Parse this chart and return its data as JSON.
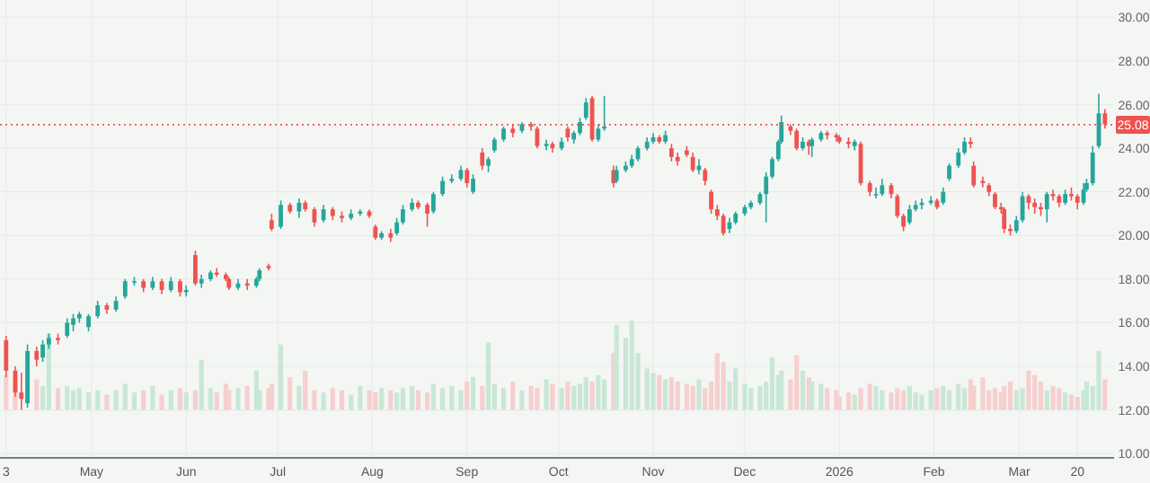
{
  "chart_data": {
    "type": "candlestick",
    "x": [
      "2025-04-03",
      "2025-04-06",
      "2025-04-08",
      "2025-04-10",
      "2025-04-13",
      "2025-04-15",
      "2025-04-17",
      "2025-04-20",
      "2025-04-23",
      "2025-04-25",
      "2025-04-27",
      "2025-04-30",
      "2025-05-03",
      "2025-05-06",
      "2025-05-09",
      "2025-05-12",
      "2025-05-15",
      "2025-05-18",
      "2025-05-21",
      "2025-05-24",
      "2025-05-27",
      "2025-05-30",
      "2025-06-01",
      "2025-06-04",
      "2025-06-06",
      "2025-06-09",
      "2025-06-11",
      "2025-06-14",
      "2025-06-15",
      "2025-06-18",
      "2025-06-21",
      "2025-06-24",
      "2025-06-25",
      "2025-06-28",
      "2025-06-29",
      "2025-07-02",
      "2025-07-05",
      "2025-07-08",
      "2025-07-10",
      "2025-07-13",
      "2025-07-16",
      "2025-07-19",
      "2025-07-22",
      "2025-07-25",
      "2025-07-28",
      "2025-07-31",
      "2025-08-02",
      "2025-08-04",
      "2025-08-07",
      "2025-08-09",
      "2025-08-11",
      "2025-08-14",
      "2025-08-16",
      "2025-08-19",
      "2025-08-21",
      "2025-08-24",
      "2025-08-27",
      "2025-08-30",
      "2025-09-01",
      "2025-09-03",
      "2025-09-06",
      "2025-09-08",
      "2025-09-10",
      "2025-09-13",
      "2025-09-16",
      "2025-09-19",
      "2025-09-22",
      "2025-09-24",
      "2025-09-27",
      "2025-09-29",
      "2025-10-02",
      "2025-10-04",
      "2025-10-06",
      "2025-10-08",
      "2025-10-10",
      "2025-10-12",
      "2025-10-14",
      "2025-10-16",
      "2025-10-19",
      "2025-10-20",
      "2025-10-23",
      "2025-10-25",
      "2025-10-27",
      "2025-10-30",
      "2025-11-01",
      "2025-11-03",
      "2025-11-05",
      "2025-11-07",
      "2025-11-09",
      "2025-11-12",
      "2025-11-14",
      "2025-11-16",
      "2025-11-18",
      "2025-11-20",
      "2025-11-22",
      "2025-11-24",
      "2025-11-26",
      "2025-11-28",
      "2025-12-01",
      "2025-12-03",
      "2025-12-06",
      "2025-12-08",
      "2025-12-10",
      "2025-12-12",
      "2025-12-13",
      "2025-12-16",
      "2025-12-18",
      "2025-12-20",
      "2025-12-22",
      "2025-12-23",
      "2025-12-26",
      "2025-12-28",
      "2025-12-31",
      "2026-01-01",
      "2026-01-04",
      "2026-01-06",
      "2026-01-08",
      "2026-01-11",
      "2026-01-13",
      "2026-01-15",
      "2026-01-18",
      "2026-01-20",
      "2026-01-22",
      "2026-01-24",
      "2026-01-26",
      "2026-01-28",
      "2026-01-31",
      "2026-02-02",
      "2026-02-04",
      "2026-02-06",
      "2026-02-09",
      "2026-02-11",
      "2026-02-13",
      "2026-02-14",
      "2026-02-17",
      "2026-02-19",
      "2026-02-21",
      "2026-02-23",
      "2026-02-24",
      "2026-02-26",
      "2026-02-28",
      "2026-03-02",
      "2026-03-04",
      "2026-03-06",
      "2026-03-08",
      "2026-03-10",
      "2026-03-12",
      "2026-03-14",
      "2026-03-16",
      "2026-03-18",
      "2026-03-20",
      "2026-03-22",
      "2026-03-23",
      "2026-03-25",
      "2026-03-27",
      "2026-03-29"
    ],
    "ohlc": [
      [
        15.2,
        15.4,
        13.5,
        13.8
      ],
      [
        13.8,
        14.0,
        12.6,
        12.8
      ],
      [
        12.8,
        13.7,
        12.0,
        12.5
      ],
      [
        12.3,
        15.0,
        12.1,
        14.7
      ],
      [
        14.7,
        14.9,
        14.0,
        14.3
      ],
      [
        14.4,
        15.2,
        14.2,
        15.0
      ],
      [
        15.0,
        15.5,
        14.8,
        15.3
      ],
      [
        15.3,
        15.5,
        15.0,
        15.2
      ],
      [
        15.4,
        16.2,
        15.3,
        16.0
      ],
      [
        15.9,
        16.4,
        15.6,
        16.2
      ],
      [
        16.2,
        16.5,
        16.0,
        16.4
      ],
      [
        15.8,
        16.4,
        15.6,
        16.3
      ],
      [
        16.3,
        17.0,
        16.2,
        16.8
      ],
      [
        16.8,
        16.9,
        16.4,
        16.6
      ],
      [
        16.6,
        17.2,
        16.5,
        17.0
      ],
      [
        17.2,
        18.0,
        17.1,
        17.9
      ],
      [
        17.9,
        18.1,
        17.7,
        17.9
      ],
      [
        17.9,
        18.0,
        17.4,
        17.6
      ],
      [
        17.6,
        18.1,
        17.5,
        17.9
      ],
      [
        17.9,
        18.0,
        17.3,
        17.5
      ],
      [
        17.5,
        18.1,
        17.4,
        17.9
      ],
      [
        17.9,
        18.0,
        17.2,
        17.4
      ],
      [
        17.4,
        17.7,
        17.2,
        17.5
      ],
      [
        19.1,
        19.3,
        17.7,
        17.8
      ],
      [
        17.8,
        18.2,
        17.6,
        18.0
      ],
      [
        18.0,
        18.4,
        17.9,
        18.3
      ],
      [
        18.3,
        18.5,
        18.1,
        18.2
      ],
      [
        18.2,
        18.3,
        17.9,
        18.0
      ],
      [
        18.0,
        18.1,
        17.5,
        17.6
      ],
      [
        17.6,
        18.0,
        17.5,
        17.8
      ],
      [
        17.8,
        18.0,
        17.5,
        17.7
      ],
      [
        17.7,
        18.1,
        17.6,
        18.0
      ],
      [
        18.0,
        18.5,
        17.9,
        18.4
      ],
      [
        18.6,
        18.7,
        18.4,
        18.5
      ],
      [
        20.7,
        21.0,
        20.2,
        20.3
      ],
      [
        20.4,
        21.6,
        20.3,
        21.4
      ],
      [
        21.4,
        21.5,
        21.0,
        21.1
      ],
      [
        21.1,
        21.7,
        20.8,
        21.5
      ],
      [
        21.5,
        21.6,
        21.1,
        21.2
      ],
      [
        21.2,
        21.3,
        20.4,
        20.6
      ],
      [
        20.7,
        21.4,
        20.6,
        21.2
      ],
      [
        21.2,
        21.3,
        20.7,
        20.9
      ],
      [
        20.9,
        21.1,
        20.6,
        20.8
      ],
      [
        20.8,
        21.2,
        20.7,
        21.0
      ],
      [
        21.0,
        21.2,
        20.9,
        21.1
      ],
      [
        21.1,
        21.2,
        20.8,
        20.9
      ],
      [
        20.4,
        20.5,
        19.8,
        19.9
      ],
      [
        19.9,
        20.2,
        19.8,
        20.1
      ],
      [
        20.1,
        20.3,
        19.7,
        19.9
      ],
      [
        20.1,
        20.8,
        20.0,
        20.6
      ],
      [
        20.6,
        21.4,
        20.5,
        21.2
      ],
      [
        21.2,
        21.7,
        21.1,
        21.5
      ],
      [
        21.5,
        21.6,
        21.2,
        21.3
      ],
      [
        21.4,
        21.5,
        20.4,
        21.0
      ],
      [
        21.1,
        22.0,
        21.0,
        21.9
      ],
      [
        21.9,
        22.7,
        21.8,
        22.5
      ],
      [
        22.5,
        22.8,
        22.4,
        22.6
      ],
      [
        22.6,
        23.2,
        22.5,
        23.0
      ],
      [
        23.0,
        23.1,
        22.2,
        22.4
      ],
      [
        22.0,
        22.8,
        21.9,
        22.6
      ],
      [
        23.8,
        24.0,
        23.0,
        23.2
      ],
      [
        23.2,
        23.6,
        22.9,
        23.5
      ],
      [
        23.9,
        24.5,
        23.8,
        24.4
      ],
      [
        24.4,
        25.0,
        24.3,
        24.9
      ],
      [
        24.9,
        25.1,
        24.5,
        24.7
      ],
      [
        24.8,
        25.2,
        24.7,
        25.1
      ],
      [
        25.1,
        25.2,
        24.8,
        25.0
      ],
      [
        24.9,
        25.0,
        24.0,
        24.1
      ],
      [
        24.1,
        24.4,
        23.9,
        24.2
      ],
      [
        24.2,
        24.3,
        23.8,
        24.0
      ],
      [
        24.0,
        24.5,
        23.9,
        24.3
      ],
      [
        24.9,
        25.0,
        24.3,
        24.5
      ],
      [
        24.4,
        24.8,
        24.2,
        24.7
      ],
      [
        24.7,
        25.4,
        24.6,
        25.2
      ],
      [
        25.4,
        26.3,
        25.3,
        26.1
      ],
      [
        26.3,
        26.4,
        24.3,
        24.4
      ],
      [
        24.4,
        25.1,
        24.3,
        24.9
      ],
      [
        24.9,
        26.4,
        24.8,
        25.0
      ],
      [
        23.0,
        23.2,
        22.2,
        22.4
      ],
      [
        22.5,
        23.2,
        22.4,
        23.0
      ],
      [
        23.0,
        23.4,
        22.9,
        23.2
      ],
      [
        23.2,
        23.7,
        23.1,
        23.5
      ],
      [
        23.5,
        24.1,
        23.4,
        24.0
      ],
      [
        24.0,
        24.5,
        23.9,
        24.3
      ],
      [
        24.3,
        24.7,
        24.2,
        24.5
      ],
      [
        24.5,
        24.6,
        24.2,
        24.3
      ],
      [
        24.3,
        24.8,
        24.2,
        24.6
      ],
      [
        24.0,
        24.2,
        23.4,
        23.6
      ],
      [
        23.6,
        23.8,
        23.2,
        23.4
      ],
      [
        23.9,
        24.1,
        23.6,
        23.7
      ],
      [
        23.6,
        23.8,
        22.9,
        23.0
      ],
      [
        23.0,
        23.5,
        22.8,
        23.2
      ],
      [
        23.0,
        23.1,
        22.3,
        22.5
      ],
      [
        22.0,
        22.1,
        21.0,
        21.2
      ],
      [
        21.2,
        21.4,
        20.7,
        20.9
      ],
      [
        20.9,
        21.0,
        20.0,
        20.1
      ],
      [
        20.3,
        20.8,
        20.1,
        20.6
      ],
      [
        20.6,
        21.1,
        20.5,
        21.0
      ],
      [
        21.0,
        21.4,
        20.9,
        21.3
      ],
      [
        21.3,
        21.6,
        21.2,
        21.5
      ],
      [
        21.5,
        22.0,
        21.4,
        21.9
      ],
      [
        21.9,
        22.9,
        20.6,
        22.7
      ],
      [
        22.7,
        23.6,
        22.6,
        23.5
      ],
      [
        23.5,
        24.4,
        23.4,
        24.3
      ],
      [
        24.3,
        25.5,
        24.2,
        25.2
      ],
      [
        25.0,
        25.1,
        24.6,
        24.8
      ],
      [
        24.8,
        24.9,
        23.9,
        24.0
      ],
      [
        24.0,
        24.5,
        23.9,
        24.3
      ],
      [
        24.3,
        24.4,
        23.7,
        24.1
      ],
      [
        24.1,
        24.5,
        23.6,
        24.4
      ],
      [
        24.4,
        24.8,
        24.3,
        24.7
      ],
      [
        24.7,
        24.8,
        24.4,
        24.6
      ],
      [
        24.6,
        24.7,
        24.3,
        24.5
      ],
      [
        24.5,
        24.6,
        24.2,
        24.3
      ],
      [
        24.3,
        24.5,
        24.0,
        24.2
      ],
      [
        24.1,
        24.4,
        23.9,
        24.3
      ],
      [
        24.2,
        24.3,
        22.3,
        22.4
      ],
      [
        22.4,
        22.5,
        21.8,
        22.0
      ],
      [
        21.9,
        22.2,
        21.7,
        21.9
      ],
      [
        21.9,
        22.6,
        21.8,
        22.3
      ],
      [
        22.3,
        22.4,
        21.7,
        21.9
      ],
      [
        21.8,
        21.9,
        20.8,
        20.9
      ],
      [
        20.9,
        21.0,
        20.2,
        20.4
      ],
      [
        20.6,
        21.4,
        20.5,
        21.2
      ],
      [
        21.2,
        21.6,
        21.1,
        21.4
      ],
      [
        21.4,
        21.7,
        21.2,
        21.5
      ],
      [
        21.5,
        21.8,
        21.4,
        21.6
      ],
      [
        21.6,
        21.7,
        21.2,
        21.3
      ],
      [
        21.5,
        22.2,
        21.4,
        22.0
      ],
      [
        22.6,
        23.3,
        22.5,
        23.2
      ],
      [
        23.2,
        24.0,
        23.1,
        23.8
      ],
      [
        23.8,
        24.5,
        23.7,
        24.3
      ],
      [
        24.3,
        24.5,
        24.0,
        24.2
      ],
      [
        23.2,
        23.4,
        22.2,
        22.3
      ],
      [
        22.5,
        22.7,
        22.2,
        22.4
      ],
      [
        22.3,
        22.4,
        21.8,
        22.0
      ],
      [
        21.9,
        22.0,
        21.2,
        21.3
      ],
      [
        21.3,
        21.5,
        21.0,
        21.2
      ],
      [
        21.2,
        21.3,
        20.1,
        20.3
      ],
      [
        20.3,
        20.5,
        20.0,
        20.2
      ],
      [
        20.2,
        20.9,
        20.1,
        20.7
      ],
      [
        20.7,
        22.0,
        20.6,
        21.8
      ],
      [
        21.8,
        21.9,
        21.2,
        21.5
      ],
      [
        21.5,
        21.7,
        21.0,
        21.3
      ],
      [
        21.3,
        21.5,
        20.9,
        21.2
      ],
      [
        21.2,
        22.0,
        20.6,
        21.9
      ],
      [
        21.9,
        22.1,
        21.6,
        21.8
      ],
      [
        21.8,
        21.9,
        21.3,
        21.5
      ],
      [
        21.5,
        22.1,
        21.4,
        21.9
      ],
      [
        21.9,
        22.2,
        21.6,
        21.8
      ],
      [
        21.8,
        21.9,
        21.2,
        21.5
      ],
      [
        21.5,
        22.4,
        21.4,
        22.1
      ],
      [
        22.1,
        22.6,
        22.0,
        22.4
      ],
      [
        22.4,
        24.1,
        22.3,
        23.8
      ],
      [
        24.1,
        26.5,
        24.0,
        25.6
      ],
      [
        25.6,
        25.8,
        24.9,
        25.1
      ]
    ],
    "colors": [
      "#ef5350",
      "#ef5350",
      "#ef5350",
      "#26a69a",
      "#ef5350",
      "#26a69a",
      "#26a69a",
      "#ef5350",
      "#26a69a",
      "#26a69a",
      "#26a69a",
      "#26a69a",
      "#26a69a",
      "#ef5350",
      "#26a69a",
      "#26a69a",
      "#26a69a",
      "#ef5350",
      "#26a69a",
      "#ef5350",
      "#26a69a",
      "#ef5350",
      "#26a69a",
      "#ef5350",
      "#26a69a",
      "#26a69a",
      "#ef5350",
      "#ef5350",
      "#ef5350",
      "#26a69a",
      "#ef5350",
      "#26a69a",
      "#26a69a",
      "#ef5350",
      "#ef5350",
      "#26a69a",
      "#ef5350",
      "#26a69a",
      "#ef5350",
      "#ef5350",
      "#26a69a",
      "#ef5350",
      "#ef5350",
      "#26a69a",
      "#26a69a",
      "#ef5350",
      "#ef5350",
      "#26a69a",
      "#ef5350",
      "#26a69a",
      "#26a69a",
      "#26a69a",
      "#ef5350",
      "#ef5350",
      "#26a69a",
      "#26a69a",
      "#26a69a",
      "#26a69a",
      "#ef5350",
      "#26a69a",
      "#ef5350",
      "#26a69a",
      "#26a69a",
      "#26a69a",
      "#ef5350",
      "#26a69a",
      "#ef5350",
      "#ef5350",
      "#26a69a",
      "#ef5350",
      "#26a69a",
      "#ef5350",
      "#26a69a",
      "#26a69a",
      "#26a69a",
      "#ef5350",
      "#26a69a",
      "#26a69a",
      "#ef5350",
      "#26a69a",
      "#26a69a",
      "#26a69a",
      "#26a69a",
      "#26a69a",
      "#26a69a",
      "#ef5350",
      "#26a69a",
      "#ef5350",
      "#ef5350",
      "#ef5350",
      "#ef5350",
      "#26a69a",
      "#ef5350",
      "#ef5350",
      "#ef5350",
      "#ef5350",
      "#26a69a",
      "#26a69a",
      "#26a69a",
      "#26a69a",
      "#26a69a",
      "#26a69a",
      "#26a69a",
      "#26a69a",
      "#26a69a",
      "#ef5350",
      "#ef5350",
      "#26a69a",
      "#ef5350",
      "#26a69a",
      "#26a69a",
      "#ef5350",
      "#ef5350",
      "#ef5350",
      "#ef5350",
      "#26a69a",
      "#ef5350",
      "#ef5350",
      "#26a69a",
      "#26a69a",
      "#ef5350",
      "#ef5350",
      "#ef5350",
      "#26a69a",
      "#26a69a",
      "#26a69a",
      "#26a69a",
      "#ef5350",
      "#26a69a",
      "#26a69a",
      "#26a69a",
      "#26a69a",
      "#ef5350",
      "#ef5350",
      "#ef5350",
      "#ef5350",
      "#ef5350",
      "#ef5350",
      "#ef5350",
      "#ef5350",
      "#26a69a",
      "#26a69a",
      "#ef5350",
      "#ef5350",
      "#ef5350",
      "#26a69a",
      "#ef5350",
      "#ef5350",
      "#26a69a",
      "#ef5350",
      "#ef5350",
      "#26a69a",
      "#26a69a",
      "#26a69a",
      "#26a69a",
      "#ef5350"
    ],
    "series": [
      {
        "type": "bar",
        "colors": [
          "#f6cfcf",
          "#f6cfcf",
          null,
          null,
          "#f6cfcf",
          "#c9e7d6",
          "#c9e7d6",
          "#f6cfcf",
          "#c9e7d6",
          "#c9e7d6",
          "#c9e7d6",
          "#c9e7d6",
          "#c9e7d6",
          "#f6cfcf",
          "#c9e7d6",
          "#c9e7d6",
          "#c9e7d6",
          "#f6cfcf",
          "#c9e7d6",
          "#f6cfcf",
          "#c9e7d6",
          "#f6cfcf",
          "#c9e7d6",
          "#f6cfcf",
          "#c9e7d6",
          "#c9e7d6",
          "#f6cfcf",
          "#f6cfcf",
          "#f6cfcf",
          "#c9e7d6",
          "#f6cfcf",
          "#c9e7d6",
          "#c9e7d6",
          "#f6cfcf",
          "#f6cfcf",
          "#c9e7d6",
          "#f6cfcf",
          "#c9e7d6",
          "#f6cfcf",
          "#f6cfcf",
          "#c9e7d6",
          "#f6cfcf",
          "#f6cfcf",
          "#c9e7d6",
          "#c9e7d6",
          "#f6cfcf",
          "#f6cfcf",
          "#c9e7d6",
          "#f6cfcf",
          "#c9e7d6",
          "#c9e7d6",
          "#c9e7d6",
          "#f6cfcf",
          "#f6cfcf",
          "#c9e7d6",
          "#c9e7d6",
          "#c9e7d6",
          "#c9e7d6",
          "#f6cfcf",
          "#c9e7d6",
          "#f6cfcf",
          "#c9e7d6",
          "#c9e7d6",
          "#c9e7d6",
          "#f6cfcf",
          "#c9e7d6",
          "#f6cfcf",
          "#f6cfcf",
          "#c9e7d6",
          "#f6cfcf",
          "#c9e7d6",
          "#f6cfcf",
          "#c9e7d6",
          "#c9e7d6",
          "#c9e7d6",
          "#f6cfcf",
          "#c9e7d6",
          "#c9e7d6",
          "#f6cfcf",
          "#c9e7d6",
          "#c9e7d6",
          "#c9e7d6",
          "#c9e7d6",
          "#c9e7d6",
          "#c9e7d6",
          "#f6cfcf",
          "#c9e7d6",
          "#f6cfcf",
          "#f6cfcf",
          "#f6cfcf",
          "#f6cfcf",
          "#c9e7d6",
          "#f6cfcf",
          "#f6cfcf",
          "#f6cfcf",
          "#f6cfcf",
          "#c9e7d6",
          "#c9e7d6",
          "#c9e7d6",
          "#c9e7d6",
          "#c9e7d6",
          "#c9e7d6",
          "#c9e7d6",
          "#c9e7d6",
          "#c9e7d6",
          "#f6cfcf",
          "#f6cfcf",
          "#c9e7d6",
          "#f6cfcf",
          "#c9e7d6",
          "#c9e7d6",
          "#f6cfcf",
          "#f6cfcf",
          "#f6cfcf",
          "#f6cfcf",
          "#c9e7d6",
          "#f6cfcf",
          "#f6cfcf",
          "#c9e7d6",
          "#c9e7d6",
          "#f6cfcf",
          "#f6cfcf",
          "#f6cfcf",
          "#c9e7d6",
          "#c9e7d6",
          "#c9e7d6",
          "#c9e7d6",
          "#f6cfcf",
          "#c9e7d6",
          "#c9e7d6",
          "#c9e7d6",
          "#c9e7d6",
          "#f6cfcf",
          "#f6cfcf",
          "#f6cfcf",
          "#f6cfcf",
          "#f6cfcf",
          "#f6cfcf",
          "#f6cfcf",
          "#f6cfcf",
          "#c9e7d6",
          "#c9e7d6",
          "#f6cfcf",
          "#f6cfcf",
          "#f6cfcf",
          "#c9e7d6",
          "#f6cfcf",
          "#f6cfcf",
          "#c9e7d6",
          "#f6cfcf",
          "#f6cfcf",
          "#c9e7d6",
          "#c9e7d6",
          "#c9e7d6",
          "#c9e7d6",
          "#f6cfcf"
        ],
        "base": [
          12,
          12,
          null,
          null,
          12,
          12,
          12,
          12,
          12,
          12,
          12,
          12,
          12,
          12,
          12,
          12,
          12,
          12,
          12,
          12,
          12,
          12,
          12,
          12,
          12,
          12,
          12,
          12,
          12,
          12,
          12,
          12,
          12,
          12,
          12,
          12,
          12,
          12,
          12,
          12,
          12,
          12,
          12,
          12,
          12,
          12,
          12,
          12,
          12,
          12,
          12,
          12,
          12,
          12,
          12,
          12,
          12,
          12,
          12,
          12,
          12,
          12,
          12,
          12,
          12,
          12,
          12,
          12,
          12,
          12,
          12,
          12,
          12,
          12,
          12,
          12,
          12,
          12,
          12,
          12,
          12,
          12,
          12,
          12,
          12,
          12,
          12,
          12,
          12,
          12,
          12,
          12,
          12,
          12,
          12,
          12,
          12,
          12,
          12,
          12,
          12,
          12,
          12,
          12,
          12,
          12,
          12,
          12,
          12,
          12,
          12,
          12,
          12,
          12,
          12,
          12,
          12,
          12,
          12,
          12,
          12,
          12,
          12,
          12,
          12,
          12,
          12,
          12,
          12,
          12,
          12,
          12,
          12,
          12,
          12,
          12,
          12,
          12,
          12,
          12,
          12,
          12,
          12,
          12,
          12,
          12,
          12,
          12,
          12,
          12,
          12,
          12,
          12,
          12,
          12,
          12
        ],
        "values": [
          1.6,
          1.3,
          null,
          null,
          1.4,
          1.1,
          3.5,
          1.0,
          1.1,
          0.9,
          1.0,
          0.8,
          0.9,
          0.7,
          0.9,
          1.2,
          0.8,
          0.9,
          1.1,
          0.7,
          0.9,
          1.0,
          0.8,
          0.9,
          2.3,
          1.0,
          0.8,
          1.2,
          0.9,
          1.0,
          1.1,
          1.8,
          0.9,
          1.0,
          1.2,
          3.0,
          1.5,
          1.1,
          1.8,
          0.9,
          0.8,
          1.0,
          0.9,
          0.7,
          1.1,
          0.9,
          0.8,
          1.0,
          0.9,
          0.8,
          1.0,
          1.1,
          0.9,
          0.8,
          1.2,
          1.0,
          1.1,
          0.9,
          1.3,
          1.5,
          1.1,
          3.1,
          1.2,
          1.0,
          1.3,
          0.9,
          1.1,
          1.0,
          1.4,
          1.2,
          1.0,
          1.3,
          1.1,
          1.2,
          1.5,
          1.3,
          1.6,
          1.4,
          2.6,
          3.9,
          3.3,
          4.1,
          2.6,
          1.9,
          1.7,
          1.6,
          1.4,
          1.5,
          1.3,
          1.2,
          1.1,
          1.4,
          1.0,
          1.3,
          2.6,
          2.2,
          1.3,
          1.9,
          1.2,
          1.0,
          1.1,
          1.3,
          2.4,
          1.6,
          1.8,
          1.4,
          2.5,
          1.8,
          1.5,
          1.3,
          1.2,
          1.0,
          0.9,
          0.6,
          0.8,
          0.7,
          1.0,
          1.2,
          1.1,
          0.9,
          0.8,
          1.0,
          0.9,
          1.1,
          0.8,
          0.7,
          0.9,
          1.0,
          1.1,
          0.9,
          1.2,
          1.0,
          1.4,
          1.1,
          1.5,
          0.9,
          1.0,
          0.8,
          1.1,
          1.3,
          0.9,
          1.0,
          1.8,
          1.6,
          1.3,
          0.9,
          1.1,
          1.0,
          0.8,
          0.7,
          0.6,
          0.9,
          1.3,
          1.1,
          2.7,
          1.4
        ]
      }
    ],
    "xlim": [
      "2025-04-01",
      "2026-04-01"
    ],
    "xticks": [
      {
        "value": "2025-04-03",
        "label": "3"
      },
      {
        "value": "2025-05-01",
        "label": "May"
      },
      {
        "value": "2025-06-01",
        "label": "Jun"
      },
      {
        "value": "2025-07-01",
        "label": "Jul"
      },
      {
        "value": "2025-08-01",
        "label": "Aug"
      },
      {
        "value": "2025-09-01",
        "label": "Sep"
      },
      {
        "value": "2025-10-01",
        "label": "Oct"
      },
      {
        "value": "2025-11-01",
        "label": "Nov"
      },
      {
        "value": "2025-12-01",
        "label": "Dec"
      },
      {
        "value": "2026-01-01",
        "label": "2026"
      },
      {
        "value": "2026-02-01",
        "label": "Feb"
      },
      {
        "value": "2026-03-01",
        "label": "Mar"
      },
      {
        "value": "2026-03-20",
        "label": "20"
      }
    ],
    "ylim": [
      9.8,
      30.8
    ],
    "yticks": [
      {
        "value": 10,
        "label": "10.00"
      },
      {
        "value": 12,
        "label": "12.00"
      },
      {
        "value": 14,
        "label": "14.00"
      },
      {
        "value": 16,
        "label": "16.00"
      },
      {
        "value": 18,
        "label": "18.00"
      },
      {
        "value": 20,
        "label": "20.00"
      },
      {
        "value": 22,
        "label": "22.00"
      },
      {
        "value": 24,
        "label": "24.00"
      },
      {
        "value": 26,
        "label": "26.00"
      },
      {
        "value": 28,
        "label": "28.00"
      },
      {
        "value": 30,
        "label": "30.00"
      }
    ],
    "grid": true,
    "ref_lines": [
      {
        "axis": "y",
        "value": 25.08,
        "label": "25.08",
        "color": "#ef5350",
        "line_style": "dotted"
      }
    ]
  }
}
